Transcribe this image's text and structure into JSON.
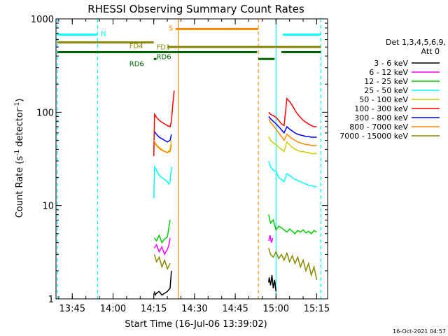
{
  "chart_data": {
    "type": "line",
    "title": "RHESSI Observing Summary Count Rates",
    "xlabel": "Start Time (16-Jul-06 13:39:02)",
    "ylabel": "Count Rate (s",
    "ylabel_sup1": "-1",
    "ylabel_mid": " detector",
    "ylabel_sup2": "-1",
    "ylabel_end": ")",
    "y_scale": "log",
    "ylim": [
      1,
      1000
    ],
    "xlim_minutes": [
      0,
      100
    ],
    "x_ticks": [
      {
        "label": "13:45",
        "t": 6
      },
      {
        "label": "14:00",
        "t": 21
      },
      {
        "label": "14:15",
        "t": 36
      },
      {
        "label": "14:30",
        "t": 51
      },
      {
        "label": "14:45",
        "t": 66
      },
      {
        "label": "15:00",
        "t": 81
      },
      {
        "label": "15:15",
        "t": 96
      }
    ],
    "y_ticks": [
      {
        "label": "1",
        "v": 1
      },
      {
        "label": "10",
        "v": 10
      },
      {
        "label": "100",
        "v": 100
      },
      {
        "label": "1000",
        "v": 1000
      }
    ],
    "legend": {
      "header1": "Det 1,3,4,5,6,9,",
      "header2": "Att 0",
      "position": "top-right"
    },
    "series": [
      {
        "name": "3 - 6 keV",
        "color": "#000000",
        "segments": [
          {
            "t": [
              36.2,
              36.5,
              37,
              38,
              39,
              40,
              41,
              42,
              42.5
            ],
            "v": [
              1.2,
              1.1,
              1.15,
              1.2,
              1.1,
              1.15,
              1.2,
              1.3,
              2.0
            ]
          },
          {
            "t": [
              78.3,
              78.5,
              79,
              79.5,
              80,
              80.5,
              81
            ],
            "v": [
              1.5,
              1.7,
              1.4,
              1.8,
              1.3,
              1.6,
              1.2
            ]
          }
        ]
      },
      {
        "name": "6 - 12 keV",
        "color": "#ff00ff",
        "segments": [
          {
            "t": [
              36.2,
              37,
              38,
              39,
              40,
              41,
              41.5,
              42
            ],
            "v": [
              3.5,
              3.8,
              3.2,
              3.6,
              3.0,
              3.4,
              3.7,
              4.5
            ]
          },
          {
            "t": [
              78.3,
              78.8,
              79.3,
              79.8
            ],
            "v": [
              4.2,
              4.8,
              4.0,
              4.5
            ]
          }
        ]
      },
      {
        "name": "12 - 25 keV",
        "color": "#00cc00",
        "segments": [
          {
            "t": [
              36.2,
              37,
              38,
              39,
              40,
              41,
              42
            ],
            "v": [
              4.5,
              4.2,
              4.8,
              4.0,
              4.4,
              4.6,
              7.0
            ]
          },
          {
            "t": [
              78.3,
              79,
              80,
              81,
              82,
              83,
              84,
              85,
              86,
              87,
              88,
              89,
              90,
              91,
              92,
              93,
              94,
              95,
              96
            ],
            "v": [
              8,
              6.5,
              7,
              5.5,
              6,
              5.8,
              5.5,
              5.2,
              5.6,
              5.3,
              5.0,
              5.4,
              5.2,
              5.5,
              5.1,
              5.3,
              5.0,
              5.4,
              5.2
            ]
          }
        ]
      },
      {
        "name": "25 - 50 keV",
        "color": "#00ffff",
        "segments": [
          {
            "t": [
              36,
              36.3,
              37,
              38,
              39,
              40,
              41,
              41.5,
              42,
              42.5
            ],
            "v": [
              12,
              26,
              24,
              21,
              20,
              19,
              18,
              17,
              18,
              26
            ]
          },
          {
            "t": [
              78.3,
              79,
              80,
              81,
              82,
              83,
              84,
              85,
              86,
              87,
              88,
              89,
              90,
              91,
              92,
              93,
              94,
              95,
              96
            ],
            "v": [
              30,
              26,
              24,
              23,
              20,
              19,
              18,
              22,
              21,
              20,
              19,
              18.5,
              18,
              17.5,
              17,
              16.5,
              16.5,
              16,
              16
            ]
          }
        ]
      },
      {
        "name": "50 - 100 keV",
        "color": "#cccc00",
        "segments": [
          {
            "t": [
              36.3,
              37,
              38,
              39,
              40,
              41,
              42,
              42.5
            ],
            "v": [
              48,
              45,
              42,
              40,
              38,
              37,
              40,
              50
            ]
          },
          {
            "t": [
              78.3,
              79,
              80,
              81,
              82,
              83,
              84,
              85,
              86,
              87,
              88,
              89,
              90,
              91,
              92,
              93,
              94,
              95,
              96
            ],
            "v": [
              55,
              50,
              47,
              45,
              42,
              40,
              38,
              48,
              45,
              42,
              40,
              39,
              38,
              38,
              37,
              37,
              36,
              36,
              36
            ]
          }
        ]
      },
      {
        "name": "100 - 300 keV",
        "color": "#ff0000",
        "segments": [
          {
            "t": [
              36,
              36.3,
              37,
              38,
              39,
              40,
              41,
              42,
              42.5,
              43,
              43.5
            ],
            "v": [
              34,
              95,
              88,
              82,
              78,
              75,
              72,
              70,
              80,
              120,
              170
            ]
          },
          {
            "t": [
              78.3,
              79,
              80,
              81,
              82,
              83,
              84,
              85,
              86,
              87,
              88,
              89,
              90,
              91,
              92,
              93,
              94,
              95,
              96
            ],
            "v": [
              100,
              95,
              92,
              88,
              82,
              75,
              72,
              140,
              130,
              118,
              105,
              95,
              88,
              82,
              78,
              75,
              72,
              70,
              70
            ]
          }
        ]
      },
      {
        "name": "300 - 800 keV",
        "color": "#0000ff",
        "segments": [
          {
            "t": [
              36.3,
              37,
              38,
              39,
              40,
              41,
              42,
              42.5
            ],
            "v": [
              62,
              58,
              54,
              52,
              50,
              48,
              50,
              58
            ]
          },
          {
            "t": [
              78.3,
              79,
              80,
              81,
              82,
              83,
              84,
              85,
              86,
              87,
              88,
              89,
              90,
              91,
              92,
              93,
              94,
              95,
              96
            ],
            "v": [
              90,
              85,
              80,
              75,
              70,
              65,
              60,
              70,
              66,
              63,
              60,
              58,
              57,
              56,
              55,
              55,
              54,
              54,
              54
            ]
          }
        ]
      },
      {
        "name": "800 - 7000 keV",
        "color": "#ff8800",
        "segments": [
          {
            "t": [
              36,
              36.3,
              37,
              38,
              39,
              40,
              41,
              42,
              42.5
            ],
            "v": [
              50,
              48,
              44,
              41,
              39,
              38,
              37,
              38,
              45
            ]
          },
          {
            "t": [
              78.3,
              79,
              80,
              81,
              82,
              83,
              84,
              85,
              86,
              87,
              88,
              89,
              90,
              91,
              92,
              93,
              94,
              95,
              96
            ],
            "v": [
              85,
              78,
              72,
              66,
              60,
              55,
              50,
              58,
              55,
              52,
              50,
              48,
              47,
              46,
              45,
              45,
              44,
              44,
              44
            ]
          }
        ]
      },
      {
        "name": "7000 - 15000 keV",
        "color": "#888800",
        "segments": [
          {
            "t": [
              36.2,
              37,
              38,
              39,
              40,
              41,
              42
            ],
            "v": [
              3.0,
              2.5,
              2.8,
              2.2,
              2.6,
              2.1,
              2.4
            ]
          },
          {
            "t": [
              78.3,
              79,
              80,
              81,
              82,
              83,
              84,
              85,
              86,
              87,
              88,
              89,
              90,
              91,
              92,
              93,
              94,
              95,
              96
            ],
            "v": [
              3.5,
              3.0,
              2.8,
              3.2,
              2.7,
              3.0,
              2.6,
              3.1,
              2.5,
              2.9,
              2.4,
              2.8,
              2.2,
              2.6,
              2.0,
              2.4,
              1.8,
              2.2,
              1.6
            ]
          }
        ]
      }
    ],
    "flags": [
      {
        "label": "N",
        "color": "#00ffff",
        "level": 680,
        "segments": [
          [
            0.5,
            15.2
          ],
          [
            83.5,
            97.5
          ]
        ],
        "label_t": 16.5
      },
      {
        "label": "S",
        "color": "#ff8800",
        "level": 780,
        "segments": [
          [
            44,
            74.5
          ]
        ],
        "label_t": 41.5
      },
      {
        "label": "FD1",
        "color": "#888800",
        "level": 560,
        "segments": [
          [
            0.5,
            36
          ]
        ],
        "label_t": 37
      },
      {
        "label": "FD4",
        "color": "#888800",
        "level": 500,
        "segments": [
          [
            41,
            97.5
          ]
        ],
        "label_t": 27
      },
      {
        "label": "RD6",
        "color": "#006600",
        "level": 440,
        "segments": [
          [
            0.5,
            74
          ],
          [
            83,
            97.5
          ]
        ],
        "label_t": 37
      },
      {
        "label": "RD6",
        "color": "#006600",
        "level": 372,
        "segments": [
          [
            36,
            37
          ],
          [
            74.5,
            80.5
          ]
        ],
        "label_t": 27
      }
    ],
    "vlines": [
      {
        "t": 0.5,
        "color": "#00ffff",
        "dash": true
      },
      {
        "t": 15.3,
        "color": "#00ffff",
        "dash": true
      },
      {
        "t": 45,
        "color": "#ff8800",
        "dash": false
      },
      {
        "t": 74.5,
        "color": "#ff8800",
        "dash": true
      },
      {
        "t": 81,
        "color": "#00ffff",
        "dash": false
      },
      {
        "t": 97.5,
        "color": "#00ffff",
        "dash": true
      }
    ],
    "footer_date": "16-Oct-2021 04:57"
  }
}
